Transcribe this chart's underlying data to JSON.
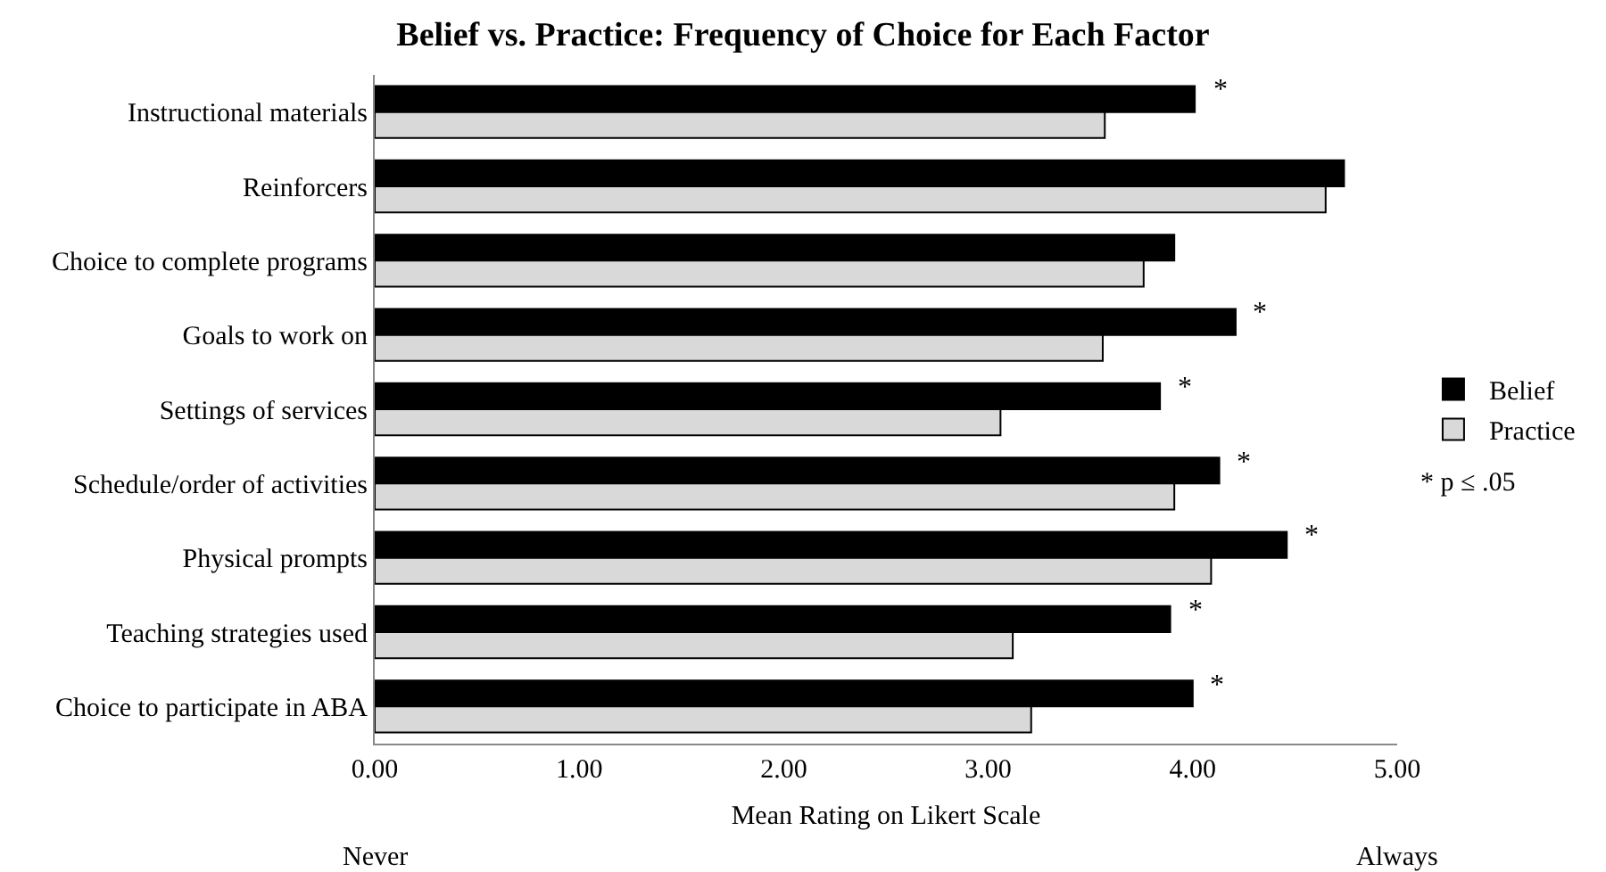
{
  "chart_data": {
    "type": "bar",
    "orientation": "horizontal",
    "title": "Belief vs. Practice: Frequency of Choice for Each Factor",
    "xlabel": "Mean Rating on Likert Scale",
    "categories": [
      "Instructional materials",
      "Reinforcers",
      "Choice to complete programs",
      "Goals to work on",
      "Settings of services",
      "Schedule/order of activities",
      "Physical prompts",
      "Teaching strategies used",
      "Choice to participate in ABA"
    ],
    "series": [
      {
        "name": "Belief",
        "color": "#000000",
        "values": [
          4.01,
          4.74,
          3.91,
          4.21,
          3.84,
          4.13,
          4.46,
          3.89,
          4.0
        ]
      },
      {
        "name": "Practice",
        "color": "#d9d9d9",
        "values": [
          3.57,
          4.65,
          3.76,
          3.56,
          3.06,
          3.91,
          4.09,
          3.12,
          3.21
        ]
      }
    ],
    "xlim": [
      0,
      5
    ],
    "xticks": [
      {
        "value": 0,
        "label": "0.00"
      },
      {
        "value": 1,
        "label": "1.00"
      },
      {
        "value": 2,
        "label": "2.00"
      },
      {
        "value": 3,
        "label": "3.00"
      },
      {
        "value": 4,
        "label": "4.00"
      },
      {
        "value": 5,
        "label": "5.00"
      }
    ],
    "grid": false,
    "legend": "right",
    "annotations": [
      {
        "text": "*",
        "x": 4.01,
        "y": "Instructional materials"
      },
      {
        "text": "*",
        "x": 4.21,
        "y": "Goals to work on"
      },
      {
        "text": "*",
        "x": 3.84,
        "y": "Settings of services"
      },
      {
        "text": "*",
        "x": 4.13,
        "y": "Schedule/order of activities"
      },
      {
        "text": "*",
        "x": 4.46,
        "y": "Physical prompts"
      },
      {
        "text": "*",
        "x": 3.89,
        "y": "Teaching strategies used"
      },
      {
        "text": "*",
        "x": 4.0,
        "y": "Choice to participate in ABA"
      },
      "Never",
      "Always",
      "* p ≤ .05"
    ]
  }
}
